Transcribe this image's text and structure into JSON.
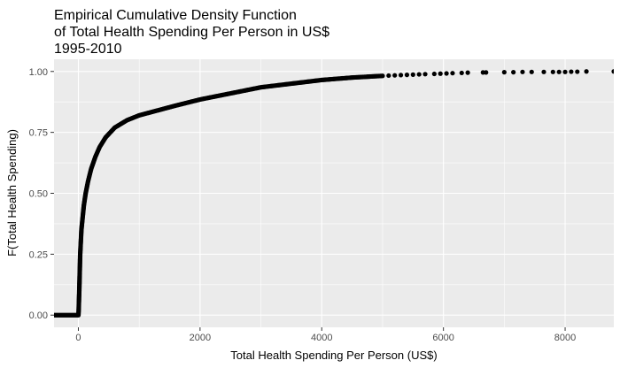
{
  "chart_data": {
    "type": "scatter",
    "title_lines": [
      "Empirical Cumulative Density Function",
      "of Total Health Spending Per Person in US$",
      "1995-2010"
    ],
    "xlabel": "Total Health Spending Per Person (US$)",
    "ylabel": "F(Total Health Spending)",
    "xlim": [
      -400,
      8800
    ],
    "ylim": [
      -0.05,
      1.05
    ],
    "x_ticks": [
      0,
      2000,
      4000,
      6000,
      8000
    ],
    "x_tick_labels": [
      "0",
      "2000",
      "4000",
      "6000",
      "8000"
    ],
    "y_ticks": [
      0,
      0.25,
      0.5,
      0.75,
      1.0
    ],
    "y_tick_labels": [
      "0.00",
      "0.25",
      "0.50",
      "0.75",
      "1.00"
    ],
    "grid": true,
    "background_color": "#ebebeb",
    "grid_color": "#ffffff",
    "point_color": "#000000",
    "curve": [
      {
        "x": -400,
        "y": 0.0
      },
      {
        "x": 1,
        "y": 0.0
      },
      {
        "x": 5,
        "y": 0.02
      },
      {
        "x": 10,
        "y": 0.06
      },
      {
        "x": 15,
        "y": 0.1
      },
      {
        "x": 20,
        "y": 0.15
      },
      {
        "x": 25,
        "y": 0.2
      },
      {
        "x": 30,
        "y": 0.25
      },
      {
        "x": 40,
        "y": 0.3
      },
      {
        "x": 50,
        "y": 0.35
      },
      {
        "x": 70,
        "y": 0.4
      },
      {
        "x": 90,
        "y": 0.45
      },
      {
        "x": 120,
        "y": 0.5
      },
      {
        "x": 160,
        "y": 0.55
      },
      {
        "x": 210,
        "y": 0.6
      },
      {
        "x": 280,
        "y": 0.65
      },
      {
        "x": 350,
        "y": 0.69
      },
      {
        "x": 450,
        "y": 0.73
      },
      {
        "x": 600,
        "y": 0.77
      },
      {
        "x": 800,
        "y": 0.8
      },
      {
        "x": 1000,
        "y": 0.82
      },
      {
        "x": 1300,
        "y": 0.84
      },
      {
        "x": 1600,
        "y": 0.86
      },
      {
        "x": 2000,
        "y": 0.885
      },
      {
        "x": 2500,
        "y": 0.91
      },
      {
        "x": 3000,
        "y": 0.935
      },
      {
        "x": 3500,
        "y": 0.95
      },
      {
        "x": 4000,
        "y": 0.965
      },
      {
        "x": 4500,
        "y": 0.975
      },
      {
        "x": 5000,
        "y": 0.982
      }
    ],
    "tail_points": [
      {
        "x": 5100,
        "y": 0.983
      },
      {
        "x": 5200,
        "y": 0.984
      },
      {
        "x": 5300,
        "y": 0.985
      },
      {
        "x": 5400,
        "y": 0.986
      },
      {
        "x": 5500,
        "y": 0.987
      },
      {
        "x": 5600,
        "y": 0.988
      },
      {
        "x": 5700,
        "y": 0.989
      },
      {
        "x": 5850,
        "y": 0.99
      },
      {
        "x": 5950,
        "y": 0.991
      },
      {
        "x": 6050,
        "y": 0.992
      },
      {
        "x": 6150,
        "y": 0.993
      },
      {
        "x": 6300,
        "y": 0.994
      },
      {
        "x": 6400,
        "y": 0.995
      },
      {
        "x": 6650,
        "y": 0.996
      },
      {
        "x": 6700,
        "y": 0.996
      },
      {
        "x": 7000,
        "y": 0.997
      },
      {
        "x": 7150,
        "y": 0.997
      },
      {
        "x": 7300,
        "y": 0.998
      },
      {
        "x": 7450,
        "y": 0.998
      },
      {
        "x": 7650,
        "y": 0.998
      },
      {
        "x": 7800,
        "y": 0.998
      },
      {
        "x": 7900,
        "y": 0.998
      },
      {
        "x": 8000,
        "y": 0.998
      },
      {
        "x": 8100,
        "y": 0.999
      },
      {
        "x": 8200,
        "y": 0.999
      },
      {
        "x": 8350,
        "y": 1.0
      },
      {
        "x": 8800,
        "y": 1.0
      }
    ]
  }
}
